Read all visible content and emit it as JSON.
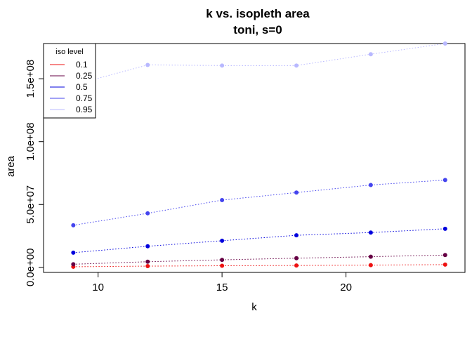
{
  "chart_data": {
    "type": "line",
    "title": "k vs. isopleth area",
    "subtitle": "toni, s=0",
    "xlabel": "k",
    "ylabel": "area",
    "xlim": [
      7.8,
      24.8
    ],
    "ylim": [
      -4000000,
      178000000
    ],
    "x_ticks": [
      10,
      15,
      20
    ],
    "x_tick_labels": [
      "10",
      "15",
      "20"
    ],
    "y_ticks": [
      0,
      50000000,
      100000000,
      150000000
    ],
    "y_tick_labels": [
      "0.0e+00",
      "5.0e+07",
      "1.0e+08",
      "1.5e+08"
    ],
    "x": [
      9,
      12,
      15,
      18,
      21,
      24
    ],
    "legend": {
      "title": "iso level",
      "position": "top-left"
    },
    "series": [
      {
        "name": "0.1",
        "color": "#ee1111",
        "values": [
          500000,
          1000000,
          1300000,
          1500000,
          1800000,
          2200000
        ]
      },
      {
        "name": "0.25",
        "color": "#660044",
        "values": [
          2500000,
          4500000,
          6000000,
          7300000,
          8500000,
          9800000
        ]
      },
      {
        "name": "0.5",
        "color": "#0000dd",
        "values": [
          11700000,
          16800000,
          21200000,
          25500000,
          27700000,
          30700000
        ]
      },
      {
        "name": "0.75",
        "color": "#4444ee",
        "values": [
          33500000,
          43000000,
          53500000,
          59500000,
          65500000,
          69500000
        ]
      },
      {
        "name": "0.95",
        "color": "#b8b8ff",
        "values": [
          145000000,
          161000000,
          160500000,
          160500000,
          169500000,
          178000000
        ]
      }
    ]
  }
}
